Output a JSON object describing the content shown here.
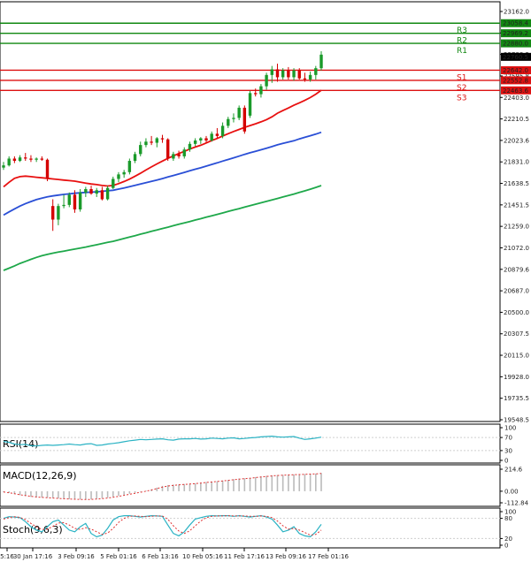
{
  "colors": {
    "bull_candle": "#1a9a2a",
    "bear_candle": "#d40000",
    "ma_fast": "#e81010",
    "ma_mid": "#2a4fd6",
    "ma_slow": "#1ea84a",
    "resistance": "#118811",
    "support": "#dd1111",
    "indicator_line": "#2bb3c4",
    "macd_hist": "#bbbbbb",
    "macd_signal": "#e03030",
    "stoch_signal": "#e03030",
    "axis": "#000000",
    "grid": "#cfcfcf"
  },
  "chart_data": {
    "type": "candlestick",
    "price_axis": {
      "min": 19548.5,
      "max": 23162.0,
      "ticks": [
        "23162.0",
        "22975.1",
        "22788.2",
        "22595.8",
        "22403.0",
        "22210.5",
        "22023.6",
        "21831.0",
        "21638.5",
        "21451.5",
        "21259.0",
        "21072.0",
        "20879.6",
        "20687.0",
        "20500.0",
        "20307.5",
        "20115.0",
        "19928.0",
        "19735.5",
        "19548.5"
      ]
    },
    "time_axis": {
      "labels": [
        "5:16",
        "30 Jan 17:16",
        "3 Feb 09:16",
        "5 Feb 01:16",
        "6 Feb 13:16",
        "10 Feb 05:16",
        "11 Feb 17:16",
        "13 Feb 09:16",
        "17 Feb 01:16"
      ]
    },
    "resistance_levels": [
      {
        "name": "R3",
        "value": 23058.4,
        "label": "23058.4"
      },
      {
        "name": "R2",
        "value": 22969.2,
        "label": "22969.2"
      },
      {
        "name": "R1",
        "value": 22880.0,
        "label": "22880.0"
      }
    ],
    "support_levels": [
      {
        "name": "S1",
        "value": 22642.0,
        "label": "22642.0"
      },
      {
        "name": "S2",
        "value": 22552.8,
        "label": "22552.8"
      },
      {
        "name": "S3",
        "value": 22463.6,
        "label": "22463.6"
      }
    ],
    "current_price": {
      "value": 22760.5,
      "label": "22760.5"
    },
    "candles": [
      {
        "o": 21780,
        "h": 21830,
        "l": 21760,
        "c": 21800
      },
      {
        "o": 21800,
        "h": 21880,
        "l": 21790,
        "c": 21860
      },
      {
        "o": 21860,
        "h": 21880,
        "l": 21820,
        "c": 21840
      },
      {
        "o": 21840,
        "h": 21890,
        "l": 21830,
        "c": 21870
      },
      {
        "o": 21870,
        "h": 21910,
        "l": 21840,
        "c": 21860
      },
      {
        "o": 21860,
        "h": 21890,
        "l": 21830,
        "c": 21850
      },
      {
        "o": 21850,
        "h": 21870,
        "l": 21830,
        "c": 21860
      },
      {
        "o": 21860,
        "h": 21880,
        "l": 21840,
        "c": 21850
      },
      {
        "o": 21850,
        "h": 21860,
        "l": 21660,
        "c": 21680
      },
      {
        "o": 21440,
        "h": 21500,
        "l": 21220,
        "c": 21320
      },
      {
        "o": 21320,
        "h": 21460,
        "l": 21270,
        "c": 21440
      },
      {
        "o": 21440,
        "h": 21540,
        "l": 21420,
        "c": 21450
      },
      {
        "o": 21450,
        "h": 21560,
        "l": 21430,
        "c": 21540
      },
      {
        "o": 21540,
        "h": 21580,
        "l": 21380,
        "c": 21410
      },
      {
        "o": 21410,
        "h": 21590,
        "l": 21390,
        "c": 21560
      },
      {
        "o": 21560,
        "h": 21610,
        "l": 21520,
        "c": 21590
      },
      {
        "o": 21590,
        "h": 21620,
        "l": 21540,
        "c": 21550
      },
      {
        "o": 21550,
        "h": 21600,
        "l": 21520,
        "c": 21580
      },
      {
        "o": 21580,
        "h": 21610,
        "l": 21490,
        "c": 21500
      },
      {
        "o": 21500,
        "h": 21620,
        "l": 21490,
        "c": 21600
      },
      {
        "o": 21600,
        "h": 21700,
        "l": 21590,
        "c": 21680
      },
      {
        "o": 21680,
        "h": 21740,
        "l": 21650,
        "c": 21720
      },
      {
        "o": 21720,
        "h": 21760,
        "l": 21690,
        "c": 21740
      },
      {
        "o": 21740,
        "h": 21860,
        "l": 21720,
        "c": 21840
      },
      {
        "o": 21840,
        "h": 21920,
        "l": 21820,
        "c": 21900
      },
      {
        "o": 21900,
        "h": 22010,
        "l": 21880,
        "c": 21980
      },
      {
        "o": 21980,
        "h": 22040,
        "l": 21960,
        "c": 22010
      },
      {
        "o": 22010,
        "h": 22060,
        "l": 21980,
        "c": 22000
      },
      {
        "o": 22000,
        "h": 22050,
        "l": 21960,
        "c": 22040
      },
      {
        "o": 22040,
        "h": 22070,
        "l": 22000,
        "c": 22030
      },
      {
        "o": 22030,
        "h": 22040,
        "l": 21840,
        "c": 21860
      },
      {
        "o": 21860,
        "h": 21920,
        "l": 21840,
        "c": 21900
      },
      {
        "o": 21900,
        "h": 21930,
        "l": 21860,
        "c": 21880
      },
      {
        "o": 21880,
        "h": 21960,
        "l": 21860,
        "c": 21940
      },
      {
        "o": 21940,
        "h": 22010,
        "l": 21920,
        "c": 21990
      },
      {
        "o": 21990,
        "h": 22040,
        "l": 21970,
        "c": 22020
      },
      {
        "o": 22020,
        "h": 22050,
        "l": 21990,
        "c": 22040
      },
      {
        "o": 22040,
        "h": 22060,
        "l": 22000,
        "c": 22020
      },
      {
        "o": 22020,
        "h": 22100,
        "l": 22010,
        "c": 22080
      },
      {
        "o": 22080,
        "h": 22130,
        "l": 22040,
        "c": 22060
      },
      {
        "o": 22060,
        "h": 22180,
        "l": 22040,
        "c": 22150
      },
      {
        "o": 22150,
        "h": 22230,
        "l": 22130,
        "c": 22210
      },
      {
        "o": 22210,
        "h": 22260,
        "l": 22180,
        "c": 22220
      },
      {
        "o": 22220,
        "h": 22330,
        "l": 22200,
        "c": 22310
      },
      {
        "o": 22310,
        "h": 22330,
        "l": 22080,
        "c": 22100
      },
      {
        "o": 22240,
        "h": 22460,
        "l": 22220,
        "c": 22440
      },
      {
        "o": 22440,
        "h": 22480,
        "l": 22410,
        "c": 22430
      },
      {
        "o": 22430,
        "h": 22520,
        "l": 22400,
        "c": 22500
      },
      {
        "o": 22500,
        "h": 22620,
        "l": 22470,
        "c": 22600
      },
      {
        "o": 22600,
        "h": 22680,
        "l": 22530,
        "c": 22650
      },
      {
        "o": 22650,
        "h": 22700,
        "l": 22540,
        "c": 22580
      },
      {
        "o": 22580,
        "h": 22660,
        "l": 22560,
        "c": 22640
      },
      {
        "o": 22640,
        "h": 22670,
        "l": 22560,
        "c": 22580
      },
      {
        "o": 22580,
        "h": 22660,
        "l": 22550,
        "c": 22640
      },
      {
        "o": 22640,
        "h": 22660,
        "l": 22560,
        "c": 22570
      },
      {
        "o": 22570,
        "h": 22620,
        "l": 22540,
        "c": 22560
      },
      {
        "o": 22560,
        "h": 22630,
        "l": 22540,
        "c": 22600
      },
      {
        "o": 22600,
        "h": 22680,
        "l": 22560,
        "c": 22660
      },
      {
        "o": 22660,
        "h": 22810,
        "l": 22640,
        "c": 22780
      }
    ],
    "moving_averages": [
      {
        "key": "ma_fast",
        "values": [
          21610,
          21650,
          21685,
          21700,
          21705,
          21700,
          21695,
          21690,
          21685,
          21680,
          21675,
          21670,
          21665,
          21660,
          21652,
          21643,
          21635,
          21630,
          21622,
          21617,
          21622,
          21638,
          21657,
          21678,
          21704,
          21730,
          21759,
          21786,
          21813,
          21838,
          21862,
          21884,
          21905,
          21924,
          21944,
          21962,
          21978,
          21998,
          22020,
          22038,
          22060,
          22080,
          22100,
          22118,
          22136,
          22152,
          22168,
          22185,
          22205,
          22230,
          22262,
          22285,
          22308,
          22332,
          22353,
          22375,
          22400,
          22430,
          22465
        ]
      },
      {
        "key": "ma_mid",
        "values": [
          21360,
          21388,
          21415,
          21440,
          21462,
          21480,
          21497,
          21510,
          21522,
          21530,
          21537,
          21543,
          21548,
          21553,
          21557,
          21560,
          21563,
          21566,
          21570,
          21575,
          21580,
          21590,
          21600,
          21612,
          21623,
          21635,
          21647,
          21659,
          21670,
          21683,
          21697,
          21710,
          21724,
          21738,
          21752,
          21766,
          21778,
          21793,
          21808,
          21822,
          21838,
          21852,
          21867,
          21882,
          21897,
          21911,
          21925,
          21938,
          21952,
          21966,
          21982,
          21994,
          22006,
          22018,
          22034,
          22048,
          22062,
          22076,
          22093
        ]
      },
      {
        "key": "ma_slow",
        "values": [
          20870,
          20890,
          20910,
          20932,
          20950,
          20968,
          20985,
          21000,
          21012,
          21023,
          21032,
          21041,
          21050,
          21059,
          21068,
          21077,
          21087,
          21097,
          21108,
          21118,
          21128,
          21140,
          21153,
          21166,
          21178,
          21191,
          21203,
          21216,
          21228,
          21241,
          21253,
          21266,
          21279,
          21291,
          21303,
          21316,
          21328,
          21341,
          21354,
          21366,
          21379,
          21392,
          21405,
          21417,
          21430,
          21443,
          21456,
          21469,
          21481,
          21494,
          21507,
          21520,
          21533,
          21546,
          21560,
          21574,
          21589,
          21605,
          21621
        ]
      }
    ],
    "rsi": {
      "title": "RSI(14)",
      "ticks": [
        "100",
        "70",
        "30",
        "0"
      ],
      "min": 0,
      "max": 100,
      "values": [
        58,
        55,
        50,
        48,
        49,
        45,
        44,
        46,
        47,
        46,
        47,
        48,
        50,
        48,
        47,
        50,
        51,
        46,
        47,
        50,
        52,
        54,
        57,
        60,
        62,
        64,
        63,
        64,
        65,
        66,
        63,
        62,
        65,
        66,
        66,
        67,
        65,
        66,
        68,
        67,
        66,
        68,
        69,
        66,
        67,
        69,
        70,
        72,
        73,
        74,
        72,
        71,
        72,
        73,
        68,
        64,
        66,
        68,
        71
      ]
    },
    "macd": {
      "title": "MACD(12,26,9)",
      "ticks": [
        "214.6",
        "0.00",
        "-112.84"
      ],
      "min": -112.84,
      "max": 214.6,
      "histogram": [
        -10,
        -18,
        -28,
        -38,
        -48,
        -55,
        -60,
        -62,
        -63,
        -65,
        -70,
        -75,
        -77,
        -78,
        -80,
        -80,
        -78,
        -74,
        -68,
        -63,
        -55,
        -45,
        -35,
        -25,
        -15,
        -5,
        5,
        18,
        35,
        52,
        60,
        64,
        66,
        70,
        74,
        78,
        84,
        90,
        95,
        98,
        104,
        110,
        118,
        124,
        126,
        130,
        138,
        144,
        150,
        155,
        158,
        160,
        162,
        164,
        165,
        167,
        170,
        172,
        178
      ],
      "signal": [
        -8,
        -15,
        -24,
        -34,
        -42,
        -50,
        -56,
        -60,
        -63,
        -66,
        -70,
        -73,
        -76,
        -78,
        -80,
        -81,
        -80,
        -77,
        -72,
        -66,
        -59,
        -50,
        -40,
        -30,
        -20,
        -10,
        0,
        12,
        26,
        40,
        50,
        57,
        62,
        66,
        70,
        74,
        79,
        85,
        90,
        95,
        100,
        106,
        112,
        118,
        122,
        127,
        133,
        139,
        144,
        149,
        153,
        156,
        159,
        161,
        163,
        165,
        167,
        169,
        173
      ]
    },
    "stochastic": {
      "title": "Stoch(9,6,3)",
      "ticks": [
        "100",
        "80",
        "20",
        "0"
      ],
      "min": 0,
      "max": 100,
      "k": [
        80,
        85,
        84,
        82,
        70,
        55,
        45,
        40,
        55,
        70,
        75,
        60,
        45,
        40,
        55,
        65,
        35,
        25,
        30,
        50,
        75,
        85,
        88,
        88,
        86,
        84,
        86,
        88,
        87,
        86,
        60,
        35,
        28,
        40,
        60,
        78,
        82,
        86,
        88,
        87,
        88,
        88,
        86,
        88,
        86,
        84,
        86,
        88,
        84,
        78,
        60,
        40,
        45,
        55,
        35,
        28,
        25,
        40,
        62
      ],
      "d": [
        78,
        82,
        85,
        83,
        76,
        65,
        55,
        47,
        48,
        56,
        66,
        67,
        60,
        50,
        47,
        52,
        48,
        40,
        32,
        36,
        50,
        68,
        80,
        86,
        87,
        86,
        85,
        86,
        87,
        87,
        77,
        58,
        42,
        35,
        43,
        58,
        72,
        82,
        86,
        87,
        87,
        88,
        87,
        87,
        87,
        86,
        86,
        87,
        86,
        82,
        72,
        58,
        48,
        50,
        45,
        38,
        30,
        32,
        45
      ]
    }
  }
}
